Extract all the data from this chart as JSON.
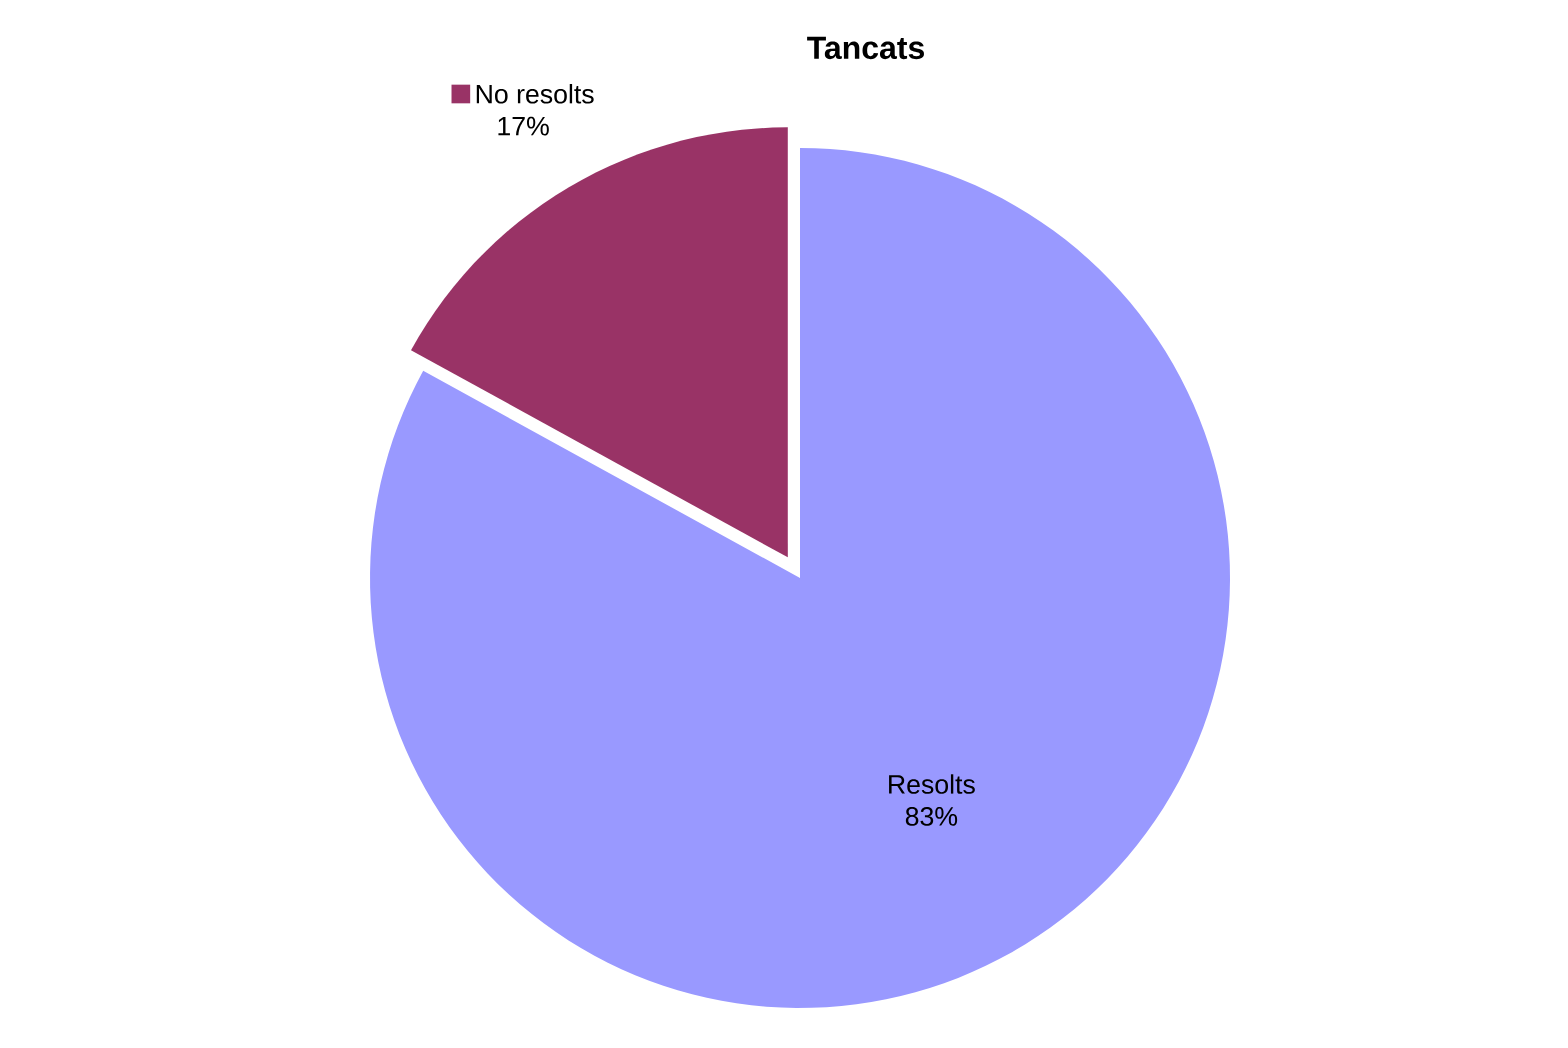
{
  "chart_data": {
    "type": "pie",
    "title": "Tancats",
    "categories": [
      "Resolts",
      "No resolts"
    ],
    "values": [
      83,
      17
    ],
    "value_labels": [
      "83%",
      "17%"
    ],
    "colors": [
      "#9999ff",
      "#993366"
    ]
  }
}
